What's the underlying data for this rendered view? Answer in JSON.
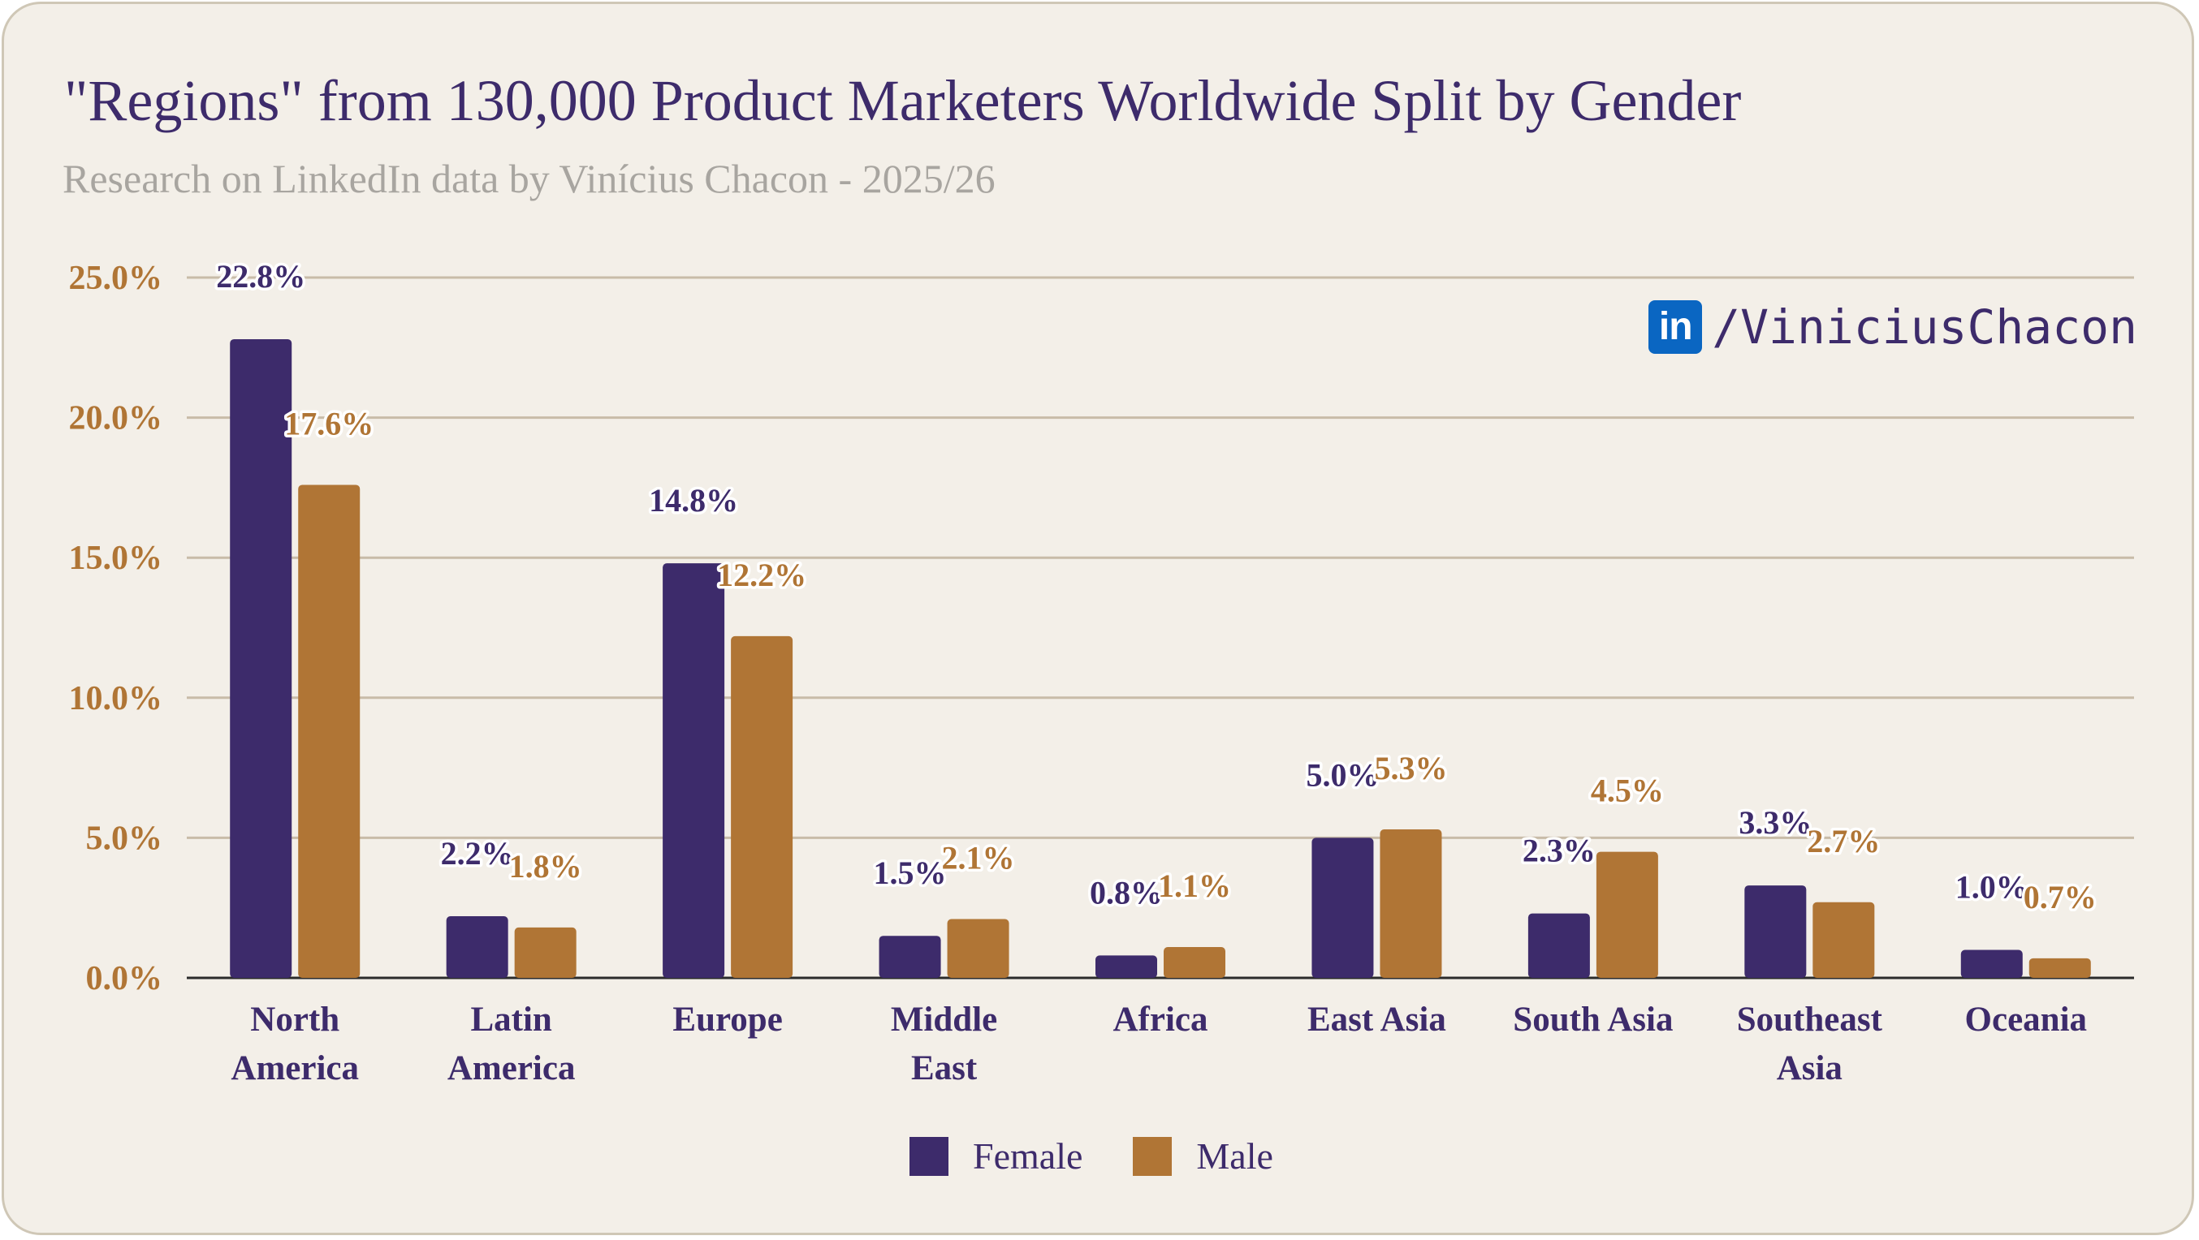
{
  "header": {
    "title": "\"Regions\" from 130,000 Product Marketers Worldwide Split by Gender",
    "subtitle": "Research on LinkedIn data by Vinícius Chacon - 2025/26"
  },
  "brand": {
    "icon": "linkedin-icon",
    "icon_text": "in",
    "handle": "/ViniciusChacon"
  },
  "colors": {
    "background": "#f3efe8",
    "female": "#3d2b6b",
    "male": "#b07535",
    "grid": "#c8bca8",
    "axis": "#2b2b2b",
    "tick": "#b07535"
  },
  "chart_data": {
    "type": "bar",
    "title": "\"Regions\" from 130,000 Product Marketers Worldwide Split by Gender",
    "categories": [
      [
        "North",
        "America"
      ],
      [
        "Latin",
        "America"
      ],
      [
        "Europe"
      ],
      [
        "Middle",
        "East"
      ],
      [
        "Africa"
      ],
      [
        "East Asia"
      ],
      [
        "South Asia"
      ],
      [
        "Southeast",
        "Asia"
      ],
      [
        "Oceania"
      ]
    ],
    "series": [
      {
        "name": "Female",
        "values": [
          22.8,
          2.2,
          14.8,
          1.5,
          0.8,
          5.0,
          2.3,
          3.3,
          1.0
        ],
        "labels": [
          "22.8%",
          "2.2%",
          "14.8%",
          "1.5%",
          "0.8%",
          "5.0%",
          "2.3%",
          "3.3%",
          "1.0%"
        ]
      },
      {
        "name": "Male",
        "values": [
          17.6,
          1.8,
          12.2,
          2.1,
          1.1,
          5.3,
          4.5,
          2.7,
          0.7
        ],
        "labels": [
          "17.6%",
          "1.8%",
          "12.2%",
          "2.1%",
          "1.1%",
          "5.3%",
          "4.5%",
          "2.7%",
          "0.7%"
        ]
      }
    ],
    "y_ticks": [
      0,
      5,
      10,
      15,
      20,
      25
    ],
    "y_tick_labels": [
      "0.0%",
      "5.0%",
      "10.0%",
      "15.0%",
      "20.0%",
      "25.0%"
    ],
    "ylim": [
      0,
      25
    ],
    "xlabel": "",
    "ylabel": "",
    "grid": true,
    "legend": "bottom-center"
  }
}
